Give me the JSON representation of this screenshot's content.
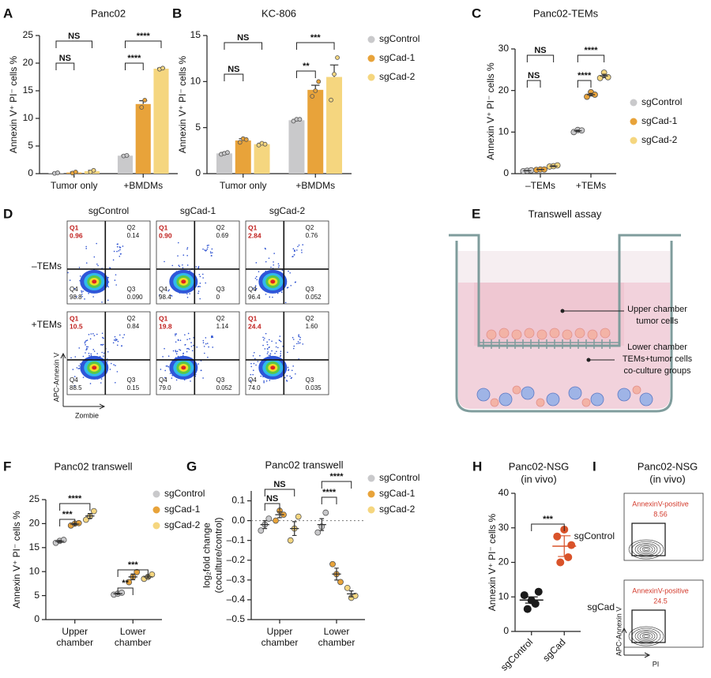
{
  "chart_data": [
    {
      "panel": "A",
      "type": "bar",
      "title": "Panc02",
      "ylabel": "Annexin V⁺ PI⁻ cells %",
      "categories": [
        "Tumor only",
        "+BMDMs"
      ],
      "series": [
        {
          "name": "sgControl",
          "color": "#c9c9cb",
          "values": [
            0.1,
            3.25
          ],
          "errors": [
            0.05,
            0.05
          ],
          "points": [
            [
              0.05,
              0.15
            ],
            [
              3.2,
              3.3
            ]
          ]
        },
        {
          "name": "sgCad-1",
          "color": "#e8a33a",
          "values": [
            0.2,
            12.6
          ],
          "errors": [
            0.1,
            0.6
          ],
          "points": [
            [
              0.1,
              0.3
            ],
            [
              12.0,
              13.3
            ]
          ]
        },
        {
          "name": "sgCad-2",
          "color": "#f5d67f",
          "values": [
            0.45,
            19.0
          ],
          "errors": [
            0.15,
            0.1
          ],
          "points": [
            [
              0.3,
              0.6
            ],
            [
              18.9,
              19.1
            ]
          ]
        }
      ],
      "ylim": [
        0,
        25
      ],
      "yticks": [
        0,
        5,
        10,
        15,
        20,
        25
      ],
      "annotations": [
        "NS",
        "NS",
        "****",
        "****"
      ],
      "legend": false
    },
    {
      "panel": "B",
      "type": "bar",
      "title": "KC-806",
      "ylabel": "Annexin V⁺ PI⁻ cells %",
      "categories": [
        "Tumor only",
        "+BMDMs"
      ],
      "series": [
        {
          "name": "sgControl",
          "color": "#c9c9cb",
          "values": [
            2.2,
            5.8
          ],
          "errors": [
            0.1,
            0.1
          ],
          "points": [
            [
              2.1,
              2.2,
              2.3
            ],
            [
              5.7,
              5.9,
              5.9
            ]
          ]
        },
        {
          "name": "sgCad-1",
          "color": "#e8a33a",
          "values": [
            3.6,
            9.1
          ],
          "errors": [
            0.2,
            0.5
          ],
          "points": [
            [
              3.4,
              3.8,
              3.7
            ],
            [
              8.4,
              9.0,
              10.0
            ]
          ]
        },
        {
          "name": "sgCad-2",
          "color": "#f5d67f",
          "values": [
            3.2,
            10.5
          ],
          "errors": [
            0.1,
            1.3
          ],
          "points": [
            [
              3.1,
              3.3,
              3.2
            ],
            [
              8.0,
              10.8,
              12.6
            ]
          ]
        }
      ],
      "ylim": [
        0,
        15
      ],
      "yticks": [
        0,
        5,
        10,
        15
      ],
      "annotations": [
        "NS",
        "NS",
        "***",
        "**"
      ],
      "legend": true
    },
    {
      "panel": "C",
      "type": "dot",
      "title": "Panc02-TEMs",
      "ylabel": "Annexin V⁺ PI⁻ cells %",
      "categories": [
        "–TEMs",
        "+TEMs"
      ],
      "series": [
        {
          "name": "sgControl",
          "color": "#c9c9cb",
          "values": [
            0.7,
            10.3
          ],
          "errors": [
            0.05,
            0.15
          ],
          "points": [
            [
              0.6,
              0.7,
              0.8
            ],
            [
              10.0,
              10.5,
              10.4
            ]
          ]
        },
        {
          "name": "sgCad-1",
          "color": "#e8a33a",
          "values": [
            1.0,
            19.0
          ],
          "errors": [
            0.03,
            0.3
          ],
          "points": [
            [
              0.9,
              1.0,
              1.0
            ],
            [
              18.5,
              19.6,
              19.0
            ]
          ]
        },
        {
          "name": "sgCad-2",
          "color": "#f5d67f",
          "values": [
            1.8,
            23.5
          ],
          "errors": [
            0.1,
            0.4
          ],
          "points": [
            [
              1.7,
              1.8,
              2.0
            ],
            [
              23.0,
              24.3,
              23.2
            ]
          ]
        }
      ],
      "ylim": [
        0,
        30
      ],
      "yticks": [
        0,
        10,
        20,
        30
      ],
      "annotations": [
        "NS",
        "NS",
        "****",
        "****"
      ],
      "legend": true
    },
    {
      "panel": "F",
      "type": "dot",
      "title": "Panc02 transwell",
      "ylabel": "Annexin V⁺ PI⁻ cells %",
      "categories": [
        "Upper chamber",
        "Lower chamber"
      ],
      "series": [
        {
          "name": "sgControl",
          "color": "#c9c9cb",
          "values": [
            16.3,
            5.4
          ],
          "errors": [
            0.2,
            0.1
          ],
          "points": [
            [
              16.0,
              16.4,
              16.6
            ],
            [
              5.2,
              5.4,
              5.6
            ]
          ]
        },
        {
          "name": "sgCad-1",
          "color": "#e8a33a",
          "values": [
            19.9,
            8.9
          ],
          "errors": [
            0.15,
            0.6
          ],
          "points": [
            [
              19.6,
              20.0,
              20.1
            ],
            [
              7.8,
              8.9,
              9.9
            ]
          ]
        },
        {
          "name": "sgCad-2",
          "color": "#f5d67f",
          "values": [
            21.6,
            8.9
          ],
          "errors": [
            0.5,
            0.3
          ],
          "points": [
            [
              20.8,
              21.5,
              22.6
            ],
            [
              8.5,
              8.9,
              9.4
            ]
          ]
        }
      ],
      "ylim": [
        0,
        25
      ],
      "yticks": [
        0,
        5,
        10,
        15,
        20,
        25
      ],
      "annotations": [
        "***",
        "****",
        "**",
        "***"
      ],
      "legend": true
    },
    {
      "panel": "G",
      "type": "dot",
      "title": "Panc02 transwell",
      "ylabel": [
        "log₂fold change",
        "(coculture/control)"
      ],
      "categories": [
        "Upper chamber",
        "Lower chamber"
      ],
      "series": [
        {
          "name": "sgControl",
          "color": "#c9c9cb",
          "values": [
            -0.02,
            -0.02
          ],
          "errors": [
            0.02,
            0.03
          ],
          "points": [
            [
              -0.05,
              -0.02,
              0.01
            ],
            [
              -0.06,
              -0.03,
              0.04
            ]
          ]
        },
        {
          "name": "sgCad-1",
          "color": "#e8a33a",
          "values": [
            0.03,
            -0.27
          ],
          "errors": [
            0.015,
            0.03
          ],
          "points": [
            [
              0.0,
              0.05,
              0.03
            ],
            [
              -0.22,
              -0.27,
              -0.31
            ]
          ]
        },
        {
          "name": "sgCad-2",
          "color": "#f5d67f",
          "values": [
            -0.04,
            -0.37
          ],
          "errors": [
            0.035,
            0.015
          ],
          "points": [
            [
              -0.1,
              -0.04,
              0.02
            ],
            [
              -0.34,
              -0.39,
              -0.38
            ]
          ]
        }
      ],
      "ylim": [
        -0.5,
        0.15
      ],
      "yticks": [
        0.1,
        {
          "value": 0,
          "label": "0.0"
        },
        {
          "value": -0.1,
          "label": "–0.1"
        },
        {
          "value": -0.2,
          "label": "–0.2"
        },
        {
          "value": -0.3,
          "label": "–0.3"
        },
        {
          "value": -0.4,
          "label": "–0.4"
        },
        {
          "value": -0.5,
          "label": "–0.5"
        }
      ],
      "hline": 0,
      "annotations": [
        "NS",
        "NS",
        "****",
        "****"
      ],
      "legend": true
    },
    {
      "panel": "H",
      "type": "strip",
      "title": [
        "Panc02-NSG",
        "(in vivo)"
      ],
      "ylabel": "Annexin V⁺ PI⁻ cells %",
      "categories": [
        "sgControl",
        "sgCad"
      ],
      "colors": [
        "#1a1a1a",
        "#d9532a"
      ],
      "values": [
        9.1,
        24.7
      ],
      "errors": [
        0.9,
        3.0
      ],
      "points": [
        [
          9.0,
          10.5,
          11.5,
          6.5,
          8.0
        ],
        [
          29.5,
          27.5,
          25.0,
          20.0,
          21.5
        ]
      ],
      "ylim": [
        0,
        40
      ],
      "yticks": [
        0,
        10,
        20,
        30,
        40
      ],
      "annotations": [
        "***"
      ]
    }
  ],
  "flow_d": {
    "panel": "D",
    "columns": [
      "sgControl",
      "sgCad-1",
      "sgCad-2"
    ],
    "rows": [
      "–TEMs",
      "+TEMs"
    ],
    "quadrants": [
      "Q1",
      "Q2",
      "Q3",
      "Q4"
    ],
    "values": [
      [
        [
          "0.96",
          "0.14",
          "0.090",
          "98.8"
        ],
        [
          "0.90",
          "0.69",
          "0",
          "98.4"
        ],
        [
          "2.84",
          "0.76",
          "0.052",
          "96.4"
        ]
      ],
      [
        [
          "10.5",
          "0.84",
          "0.15",
          "88.5"
        ],
        [
          "19.8",
          "1.14",
          "0.052",
          "79.0"
        ],
        [
          "24.4",
          "1.60",
          "0.035",
          "74.0"
        ]
      ]
    ],
    "ylabel": "APC-Annexin V",
    "xlabel": "Zombie"
  },
  "diagram_e": {
    "panel": "E",
    "title": "Transwell assay",
    "labels": [
      [
        "Upper chamber",
        "tumor cells"
      ],
      [
        "Lower chamber",
        "TEMs+tumor cells",
        "co-culture groups"
      ]
    ]
  },
  "flow_i": {
    "panel": "I",
    "title": [
      "Panc02-NSG",
      "(in vivo)"
    ],
    "rows": [
      "sgControl",
      "sgCad"
    ],
    "gate_label": "AnnexinV-positive",
    "values": [
      "8.56",
      "24.5"
    ],
    "ylabel": "APC-Annexin V",
    "xlabel": "PI"
  }
}
